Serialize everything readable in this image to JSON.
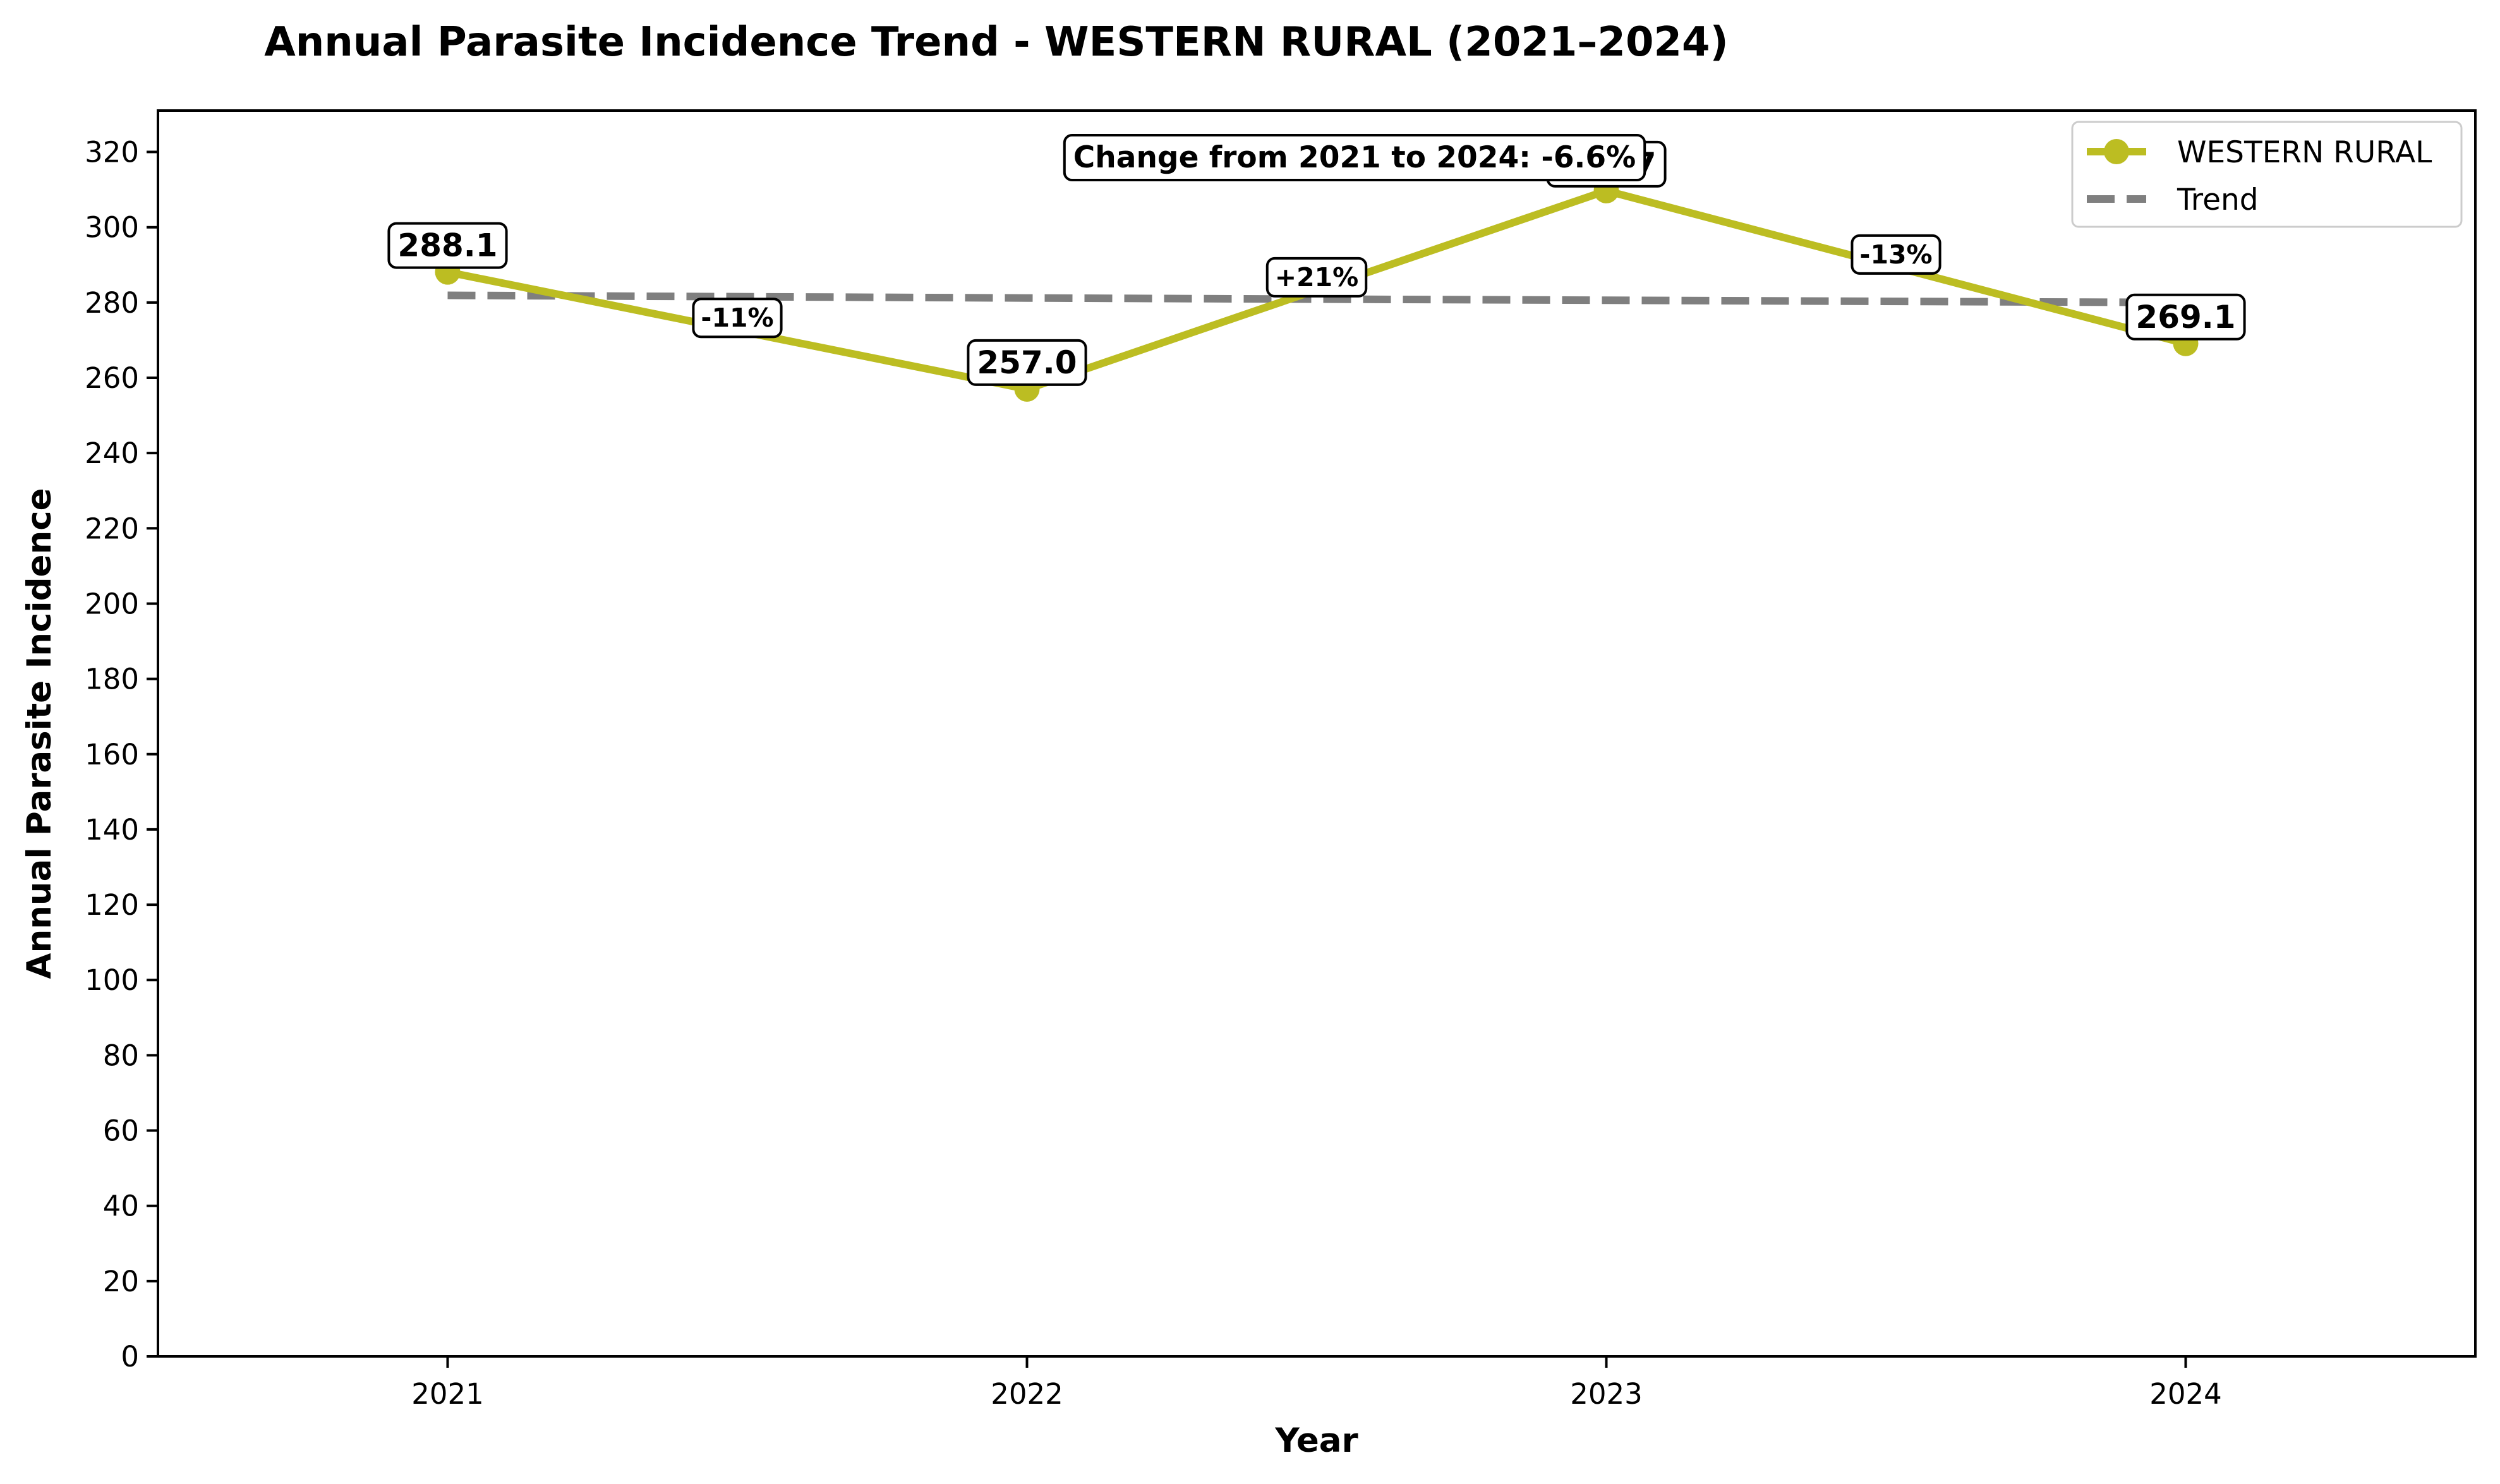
{
  "chart_data": {
    "type": "line",
    "title": "Annual Parasite Incidence Trend - WESTERN RURAL (2021–2024)",
    "xlabel": "Year",
    "ylabel": "Annual Parasite Incidence",
    "categories": [
      "2021",
      "2022",
      "2023",
      "2024"
    ],
    "series": [
      {
        "name": "WESTERN RURAL",
        "values": [
          288.1,
          257.0,
          309.7,
          269.1
        ],
        "labels": [
          "288.1",
          "257.0",
          "309.7",
          "269.1"
        ],
        "color": "#bcbd22"
      }
    ],
    "trend": {
      "name": "Trend",
      "values": [
        281.9,
        281.2,
        280.6,
        280.0
      ],
      "color": "#7f7f7f"
    },
    "pct_changes": [
      "-11%",
      "+21%",
      "-13%"
    ],
    "annotation": "Change from 2021 to 2024: -6.6%",
    "yticks": [
      "0",
      "20",
      "40",
      "60",
      "80",
      "100",
      "120",
      "140",
      "160",
      "180",
      "200",
      "220",
      "240",
      "260",
      "280",
      "300",
      "320"
    ],
    "ylim": [
      0,
      331
    ],
    "xlim": [
      -0.5,
      3.5
    ],
    "grid": false,
    "legend_position": "top-right"
  }
}
